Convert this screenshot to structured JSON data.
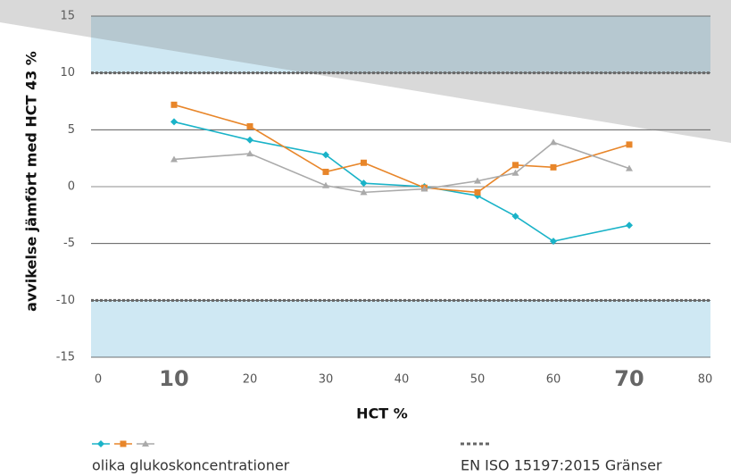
{
  "chart_data": {
    "type": "line",
    "x_label": "HCT %",
    "y_label": "avvikelse jämfört med HCT 43 %",
    "x": [
      10,
      20,
      30,
      35,
      43,
      50,
      55,
      60,
      70
    ],
    "series": [
      {
        "color": "#1ab3c8",
        "marker": "diamond",
        "values": [
          5.7,
          4.1,
          2.8,
          0.3,
          0,
          -0.8,
          -2.6,
          -4.8,
          -3.4
        ]
      },
      {
        "color": "#e8862a",
        "marker": "square",
        "values": [
          7.2,
          5.3,
          1.3,
          2.1,
          -0.1,
          -0.5,
          1.9,
          1.7,
          3.7
        ]
      },
      {
        "color": "#aaaaaa",
        "marker": "triangle",
        "values": [
          2.4,
          2.9,
          0.1,
          -0.5,
          -0.2,
          0.5,
          1.2,
          3.9,
          1.6
        ]
      }
    ],
    "limits": [
      -10,
      10
    ],
    "xlim": [
      0,
      80
    ],
    "xticks": [
      0,
      10,
      20,
      30,
      40,
      50,
      60,
      70,
      80
    ],
    "bold_xticks": [
      10,
      70
    ],
    "ylim": [
      -15,
      15
    ],
    "yticks": [
      -15,
      -10,
      -5,
      0,
      5,
      10,
      15
    ],
    "legend": [
      {
        "label": "olika glukoskoncentrationer"
      },
      {
        "label": "EN ISO 15197:2015 Gränser"
      }
    ]
  }
}
